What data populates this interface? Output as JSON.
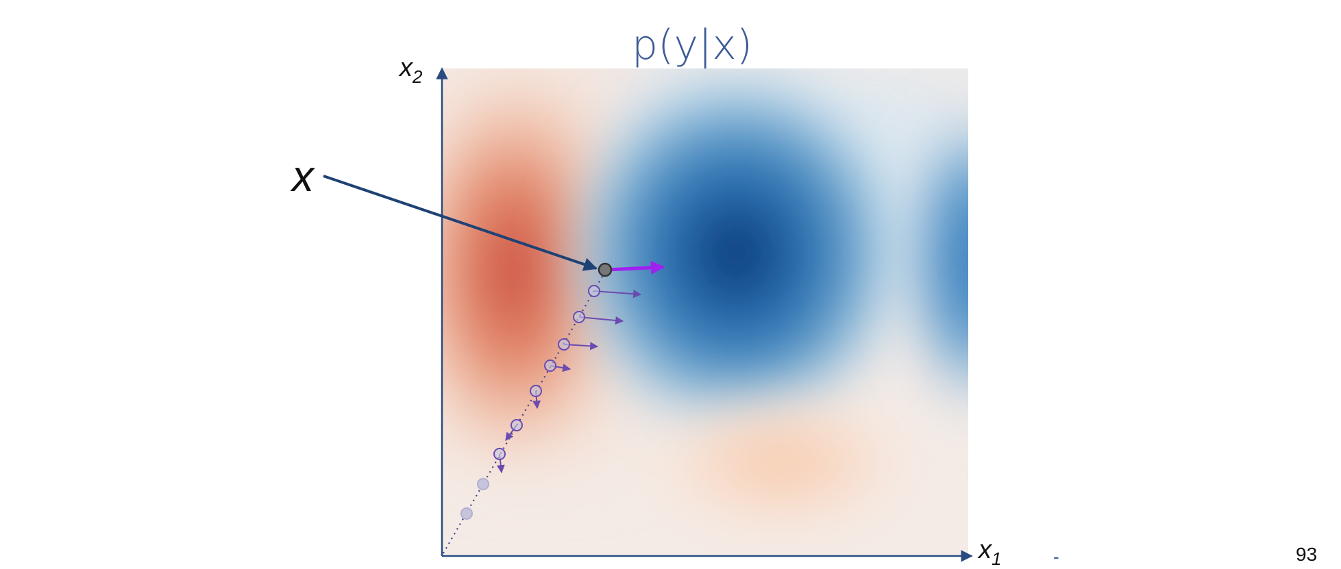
{
  "slide": {
    "title": "p(y|x)",
    "input_label": "x",
    "axis_x_label": "x",
    "axis_x_subscript": "1",
    "axis_y_label": "x",
    "axis_y_subscript": "2",
    "page_number": "93",
    "stray_mark": "-"
  },
  "colors": {
    "axis": "#2a4a80",
    "pointer_arrow": "#1f4275",
    "gradient_arrow": "#a020f0",
    "path_arrows": "#6a4bb0",
    "path_points": "#6a4bb0",
    "negative_class": "#c8453a",
    "positive_class": "#0b2d5e",
    "input_point": "#777777"
  }
}
